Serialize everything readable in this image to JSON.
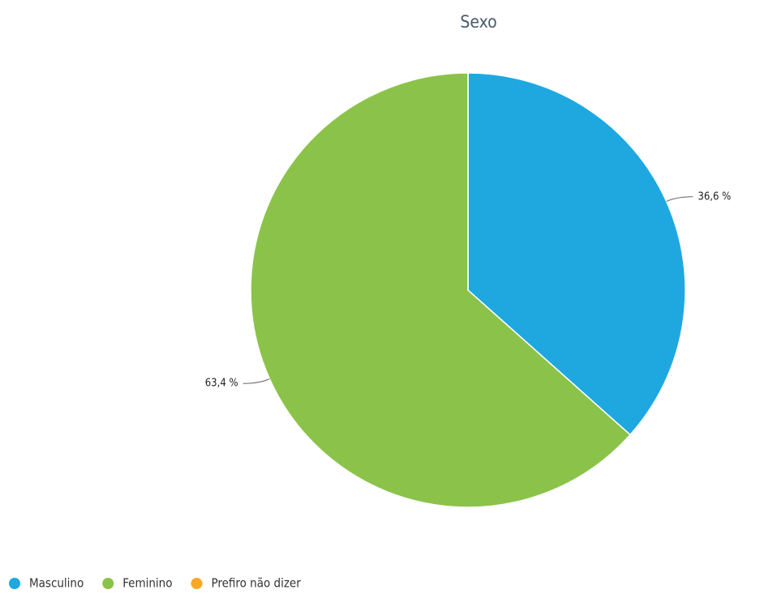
{
  "chart_data": {
    "type": "pie",
    "title": "Sexo",
    "categories": [
      "Masculino",
      "Feminino",
      "Prefiro não dizer"
    ],
    "values": [
      36.6,
      63.4,
      0
    ],
    "value_labels": [
      "36,6 %",
      "63,4 %",
      null
    ],
    "colors": [
      "#1fa8e0",
      "#8bc34a",
      "#f9a825"
    ],
    "legend": "bottom-left"
  }
}
